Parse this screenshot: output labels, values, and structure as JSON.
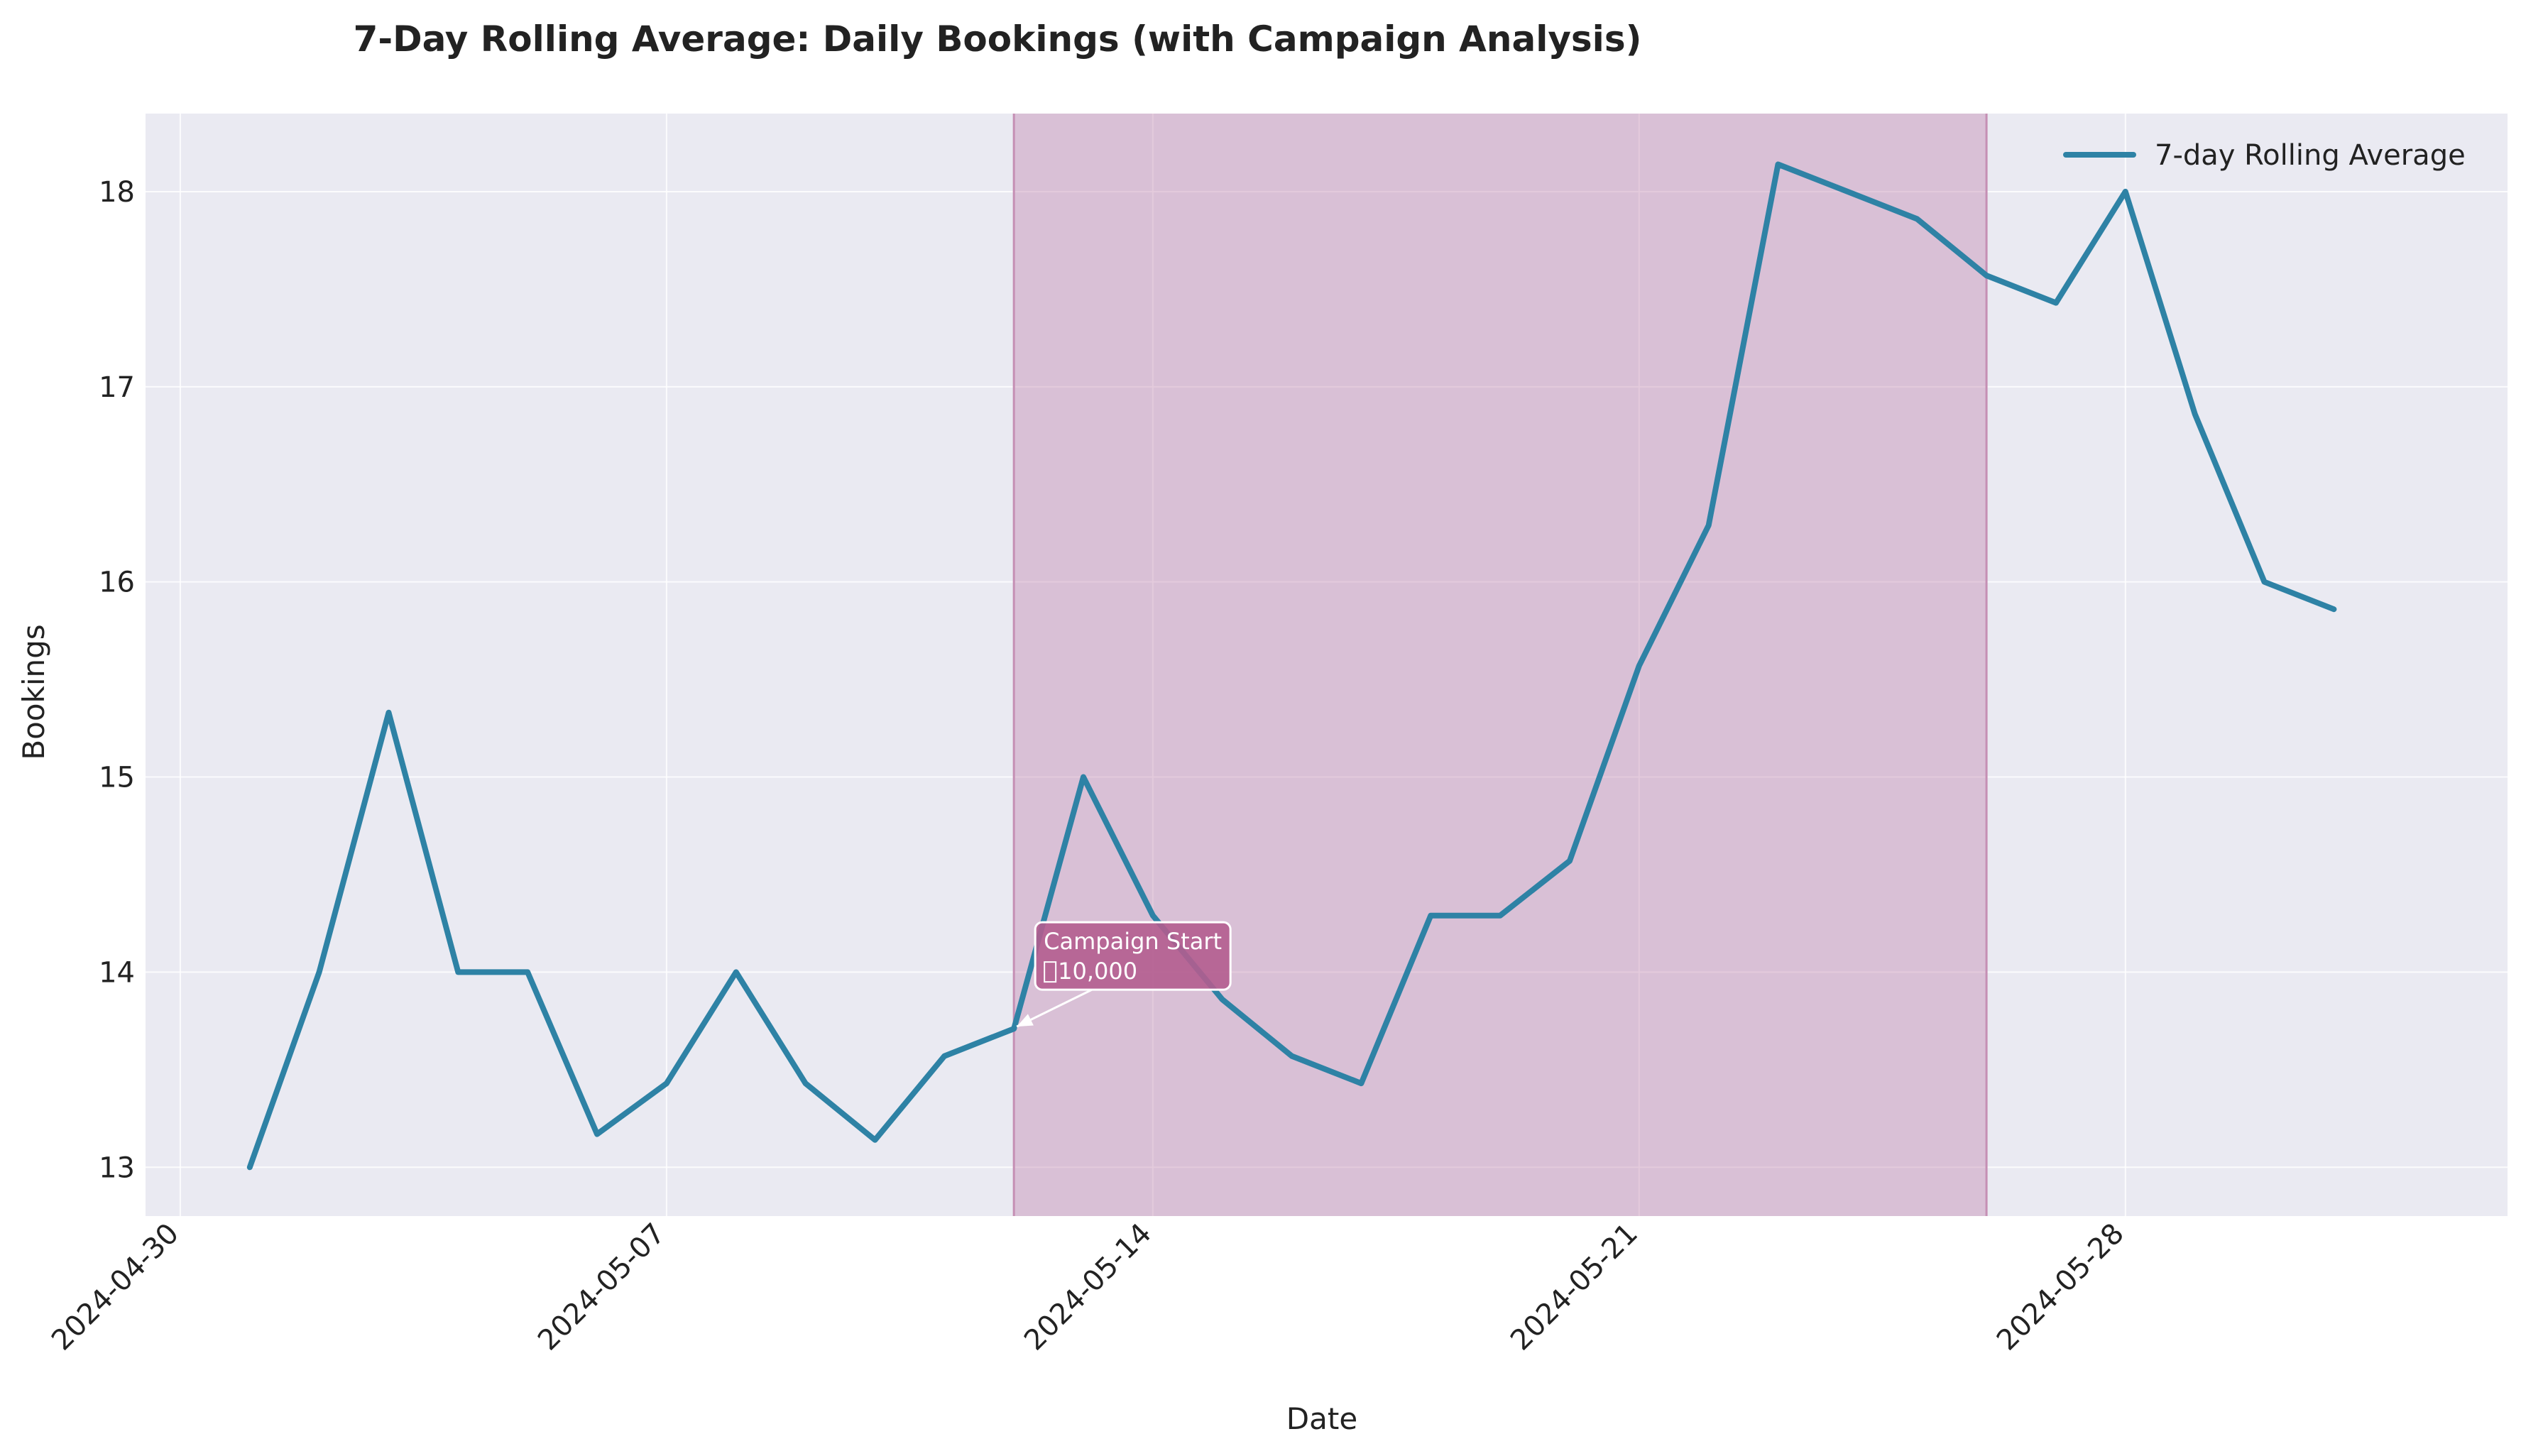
{
  "chart_data": {
    "type": "line",
    "title": "7-Day Rolling Average: Daily Bookings (with Campaign Analysis)",
    "xlabel": "Date",
    "ylabel": "Bookings",
    "x_ticks": [
      "2024-04-30",
      "2024-05-07",
      "2024-05-14",
      "2024-05-21",
      "2024-05-28"
    ],
    "y_ticks": [
      13,
      14,
      15,
      16,
      17,
      18
    ],
    "xlim": [
      "2024-04-29T12:00",
      "2024-06-02T12:00"
    ],
    "ylim": [
      12.75,
      18.4
    ],
    "grid": true,
    "legend_position": "top-right",
    "series": [
      {
        "name": "7-day Rolling Average",
        "color": "#2e82a5",
        "x": [
          "2024-05-01",
          "2024-05-02",
          "2024-05-03",
          "2024-05-04",
          "2024-05-05",
          "2024-05-06",
          "2024-05-07",
          "2024-05-08",
          "2024-05-09",
          "2024-05-10",
          "2024-05-11",
          "2024-05-12",
          "2024-05-13",
          "2024-05-14",
          "2024-05-15",
          "2024-05-16",
          "2024-05-17",
          "2024-05-18",
          "2024-05-19",
          "2024-05-20",
          "2024-05-21",
          "2024-05-22",
          "2024-05-23",
          "2024-05-24",
          "2024-05-25",
          "2024-05-26",
          "2024-05-27",
          "2024-05-28",
          "2024-05-29",
          "2024-05-30",
          "2024-05-31"
        ],
        "y": [
          13.0,
          14.0,
          15.33,
          14.0,
          14.0,
          13.17,
          13.43,
          14.0,
          13.43,
          13.14,
          13.57,
          13.71,
          15.0,
          14.29,
          13.86,
          13.57,
          13.43,
          14.29,
          14.29,
          14.57,
          15.57,
          16.29,
          18.14,
          18.0,
          17.86,
          17.57,
          17.43,
          18.0,
          16.86,
          16.0,
          15.86
        ]
      }
    ],
    "shaded_region": {
      "start": "2024-05-12",
      "end": "2024-05-26",
      "color": "#c58fb4"
    },
    "annotation": {
      "line1": "Campaign Start",
      "line2": "10,000",
      "box_color": "#b25d8f",
      "x": "2024-05-12",
      "y": 13.71
    }
  }
}
